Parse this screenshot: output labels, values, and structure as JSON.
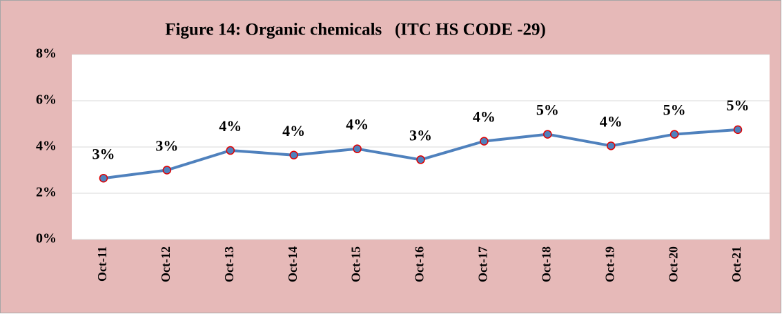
{
  "chart_data": {
    "type": "line",
    "title": "Figure 14: Organic chemicals   (ITC HS CODE -29)",
    "categories": [
      "Oct-11",
      "Oct-12",
      "Oct-13",
      "Oct-14",
      "Oct-15",
      "Oct-16",
      "Oct-17",
      "Oct-18",
      "Oct-19",
      "Oct-20",
      "Oct-21"
    ],
    "series": [
      {
        "name": "Organic chemicals",
        "color": "#4f81bd",
        "values": [
          2.65,
          3.0,
          3.85,
          3.65,
          3.92,
          3.45,
          4.25,
          4.55,
          4.05,
          4.55,
          4.75
        ],
        "value_labels": [
          "3%",
          "3%",
          "4%",
          "4%",
          "4%",
          "3%",
          "4%",
          "5%",
          "4%",
          "5%",
          "5%"
        ]
      }
    ],
    "marker_edge_color": "#e00000",
    "ylim": [
      0,
      8
    ],
    "yticks": [
      {
        "value": 0,
        "label": "0%"
      },
      {
        "value": 2,
        "label": "2%"
      },
      {
        "value": 4,
        "label": "4%"
      },
      {
        "value": 6,
        "label": "6%"
      },
      {
        "value": 8,
        "label": "8%"
      }
    ],
    "grid": true
  }
}
